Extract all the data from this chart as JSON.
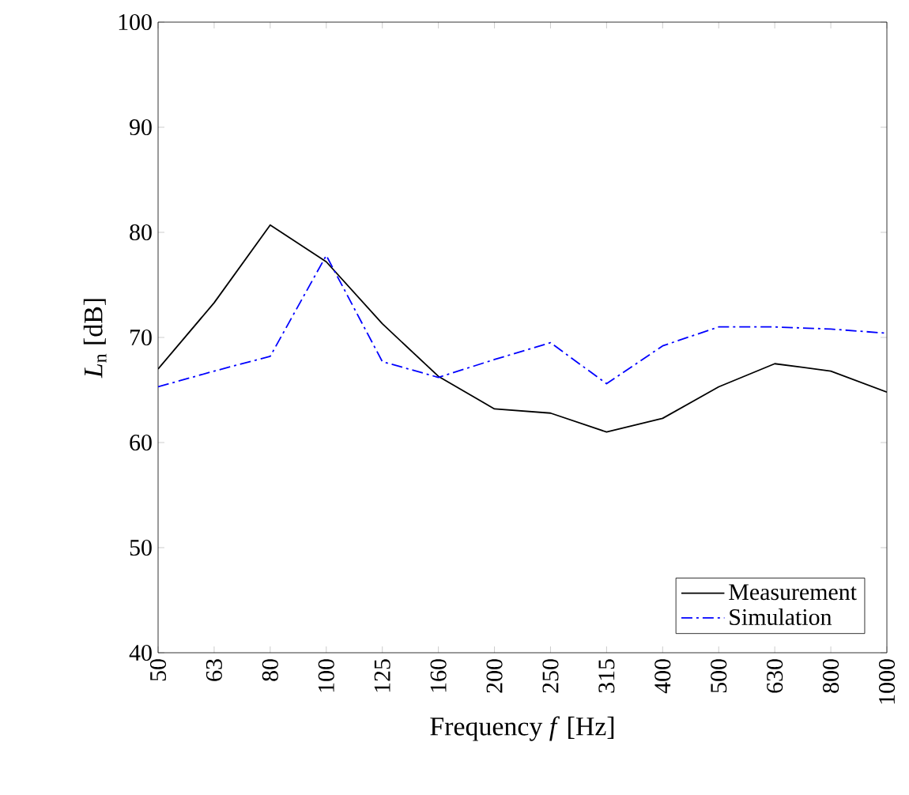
{
  "chart_data": {
    "type": "line",
    "xlabel": "Frequency *f* [Hz]",
    "ylabel": "*L*$_{n}$ [dB]",
    "categories": [
      "50",
      "63",
      "80",
      "100",
      "125",
      "160",
      "200",
      "250",
      "315",
      "400",
      "500",
      "630",
      "800",
      "1000"
    ],
    "series": [
      {
        "name": "Measurement",
        "color": "#000000",
        "line_style": "solid",
        "values": [
          67.0,
          73.3,
          80.7,
          77.2,
          71.3,
          66.3,
          63.2,
          62.8,
          61.0,
          62.3,
          65.3,
          67.5,
          66.8,
          64.8
        ]
      },
      {
        "name": "Simulation",
        "color": "#0000ff",
        "line_style": "dashdot",
        "values": [
          65.3,
          66.8,
          68.2,
          77.8,
          67.7,
          66.2,
          67.9,
          69.5,
          65.6,
          69.2,
          71.0,
          71.0,
          70.8,
          70.4
        ]
      }
    ],
    "ylim": [
      40,
      100
    ],
    "yticks": [
      40,
      50,
      60,
      70,
      80,
      90,
      100
    ],
    "grid": false,
    "legend": "bottom right",
    "marker": "none"
  }
}
